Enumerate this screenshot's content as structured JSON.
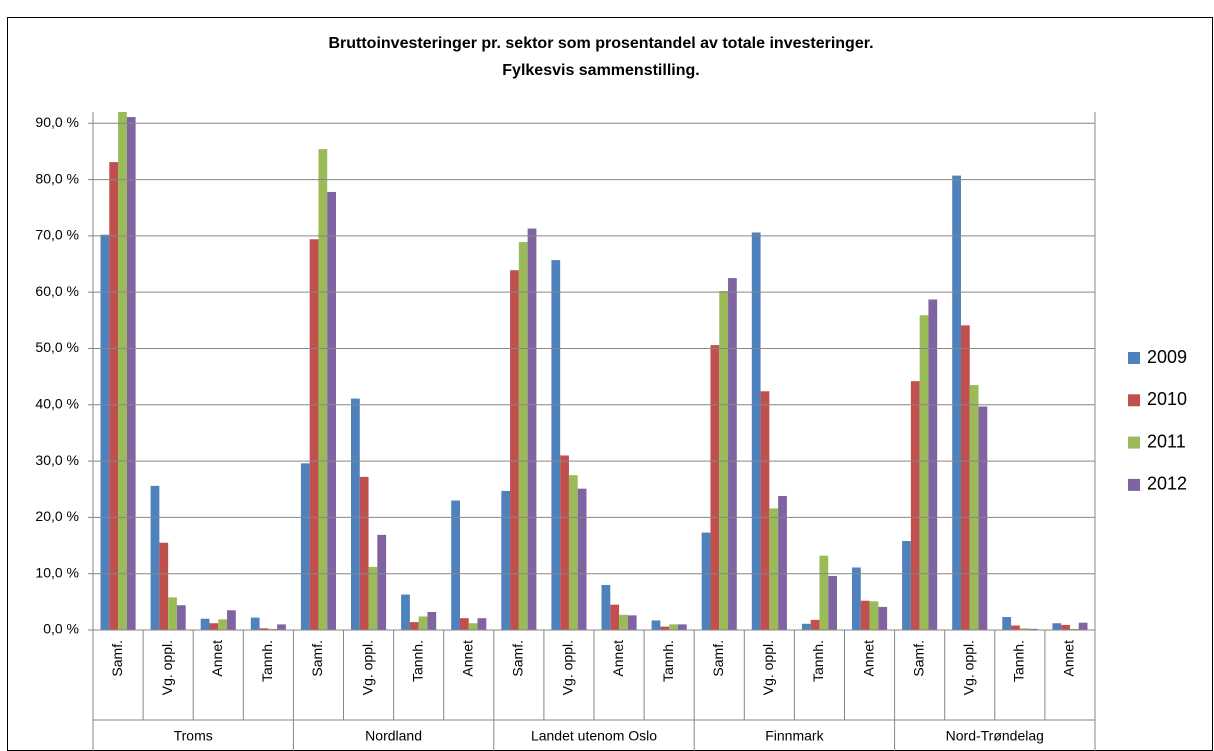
{
  "chart_data": {
    "type": "bar",
    "title_lines": [
      "Bruttoinvesteringer pr. sektor som prosentandel av totale investeringer.",
      "Fylkesvis sammenstilling."
    ],
    "categories": [
      "Samf.",
      "Vg. oppl.",
      "Annet",
      "Tannh.",
      "Samf.",
      "Vg. oppl.",
      "Tannh.",
      "Annet",
      "Samf.",
      "Vg. oppl.",
      "Annet",
      "Tannh.",
      "Samf.",
      "Vg. oppl.",
      "Tannh.",
      "Annet",
      "Samf.",
      "Vg. oppl.",
      "Tannh.",
      "Annet"
    ],
    "group_labels": [
      "Troms",
      "Nordland",
      "Landet utenom Oslo",
      "Finnmark",
      "Nord-Trøndelag"
    ],
    "series": [
      {
        "name": "2009",
        "color": "#4f81bd",
        "values": [
          70.2,
          25.6,
          2.0,
          2.2,
          29.6,
          41.1,
          6.3,
          23.0,
          24.7,
          65.7,
          8.0,
          1.7,
          17.3,
          70.6,
          1.1,
          11.1,
          15.8,
          80.7,
          2.3,
          1.2
        ]
      },
      {
        "name": "2010",
        "color": "#c0504d",
        "values": [
          83.1,
          15.5,
          1.2,
          0.3,
          69.4,
          27.2,
          1.4,
          2.1,
          63.9,
          31.0,
          4.5,
          0.6,
          50.6,
          42.4,
          1.8,
          5.2,
          44.2,
          54.1,
          0.8,
          0.9
        ]
      },
      {
        "name": "2011",
        "color": "#9bbb59",
        "values": [
          92.3,
          5.8,
          1.9,
          0.2,
          85.4,
          11.2,
          2.4,
          1.2,
          68.9,
          27.5,
          2.7,
          1.0,
          60.2,
          21.6,
          13.2,
          5.1,
          55.9,
          43.5,
          0.3,
          0.2
        ]
      },
      {
        "name": "2012",
        "color": "#8064a2",
        "values": [
          91.1,
          4.4,
          3.5,
          1.0,
          77.8,
          16.9,
          3.2,
          2.1,
          71.3,
          25.1,
          2.6,
          1.0,
          62.5,
          23.8,
          9.6,
          4.1,
          58.7,
          39.7,
          0.2,
          1.3
        ]
      }
    ],
    "ylim": [
      0,
      92
    ],
    "yticks": [
      {
        "value": 0,
        "label": "0,0 %"
      },
      {
        "value": 10,
        "label": "10,0 %"
      },
      {
        "value": 20,
        "label": "20,0 %"
      },
      {
        "value": 30,
        "label": "30,0 %"
      },
      {
        "value": 40,
        "label": "40,0 %"
      },
      {
        "value": 50,
        "label": "50,0 %"
      },
      {
        "value": 60,
        "label": "60,0 %"
      },
      {
        "value": 70,
        "label": "70,0 %"
      },
      {
        "value": 80,
        "label": "80,0 %"
      },
      {
        "value": 90,
        "label": "90,0 %"
      }
    ],
    "grid": true,
    "legend": "right"
  }
}
